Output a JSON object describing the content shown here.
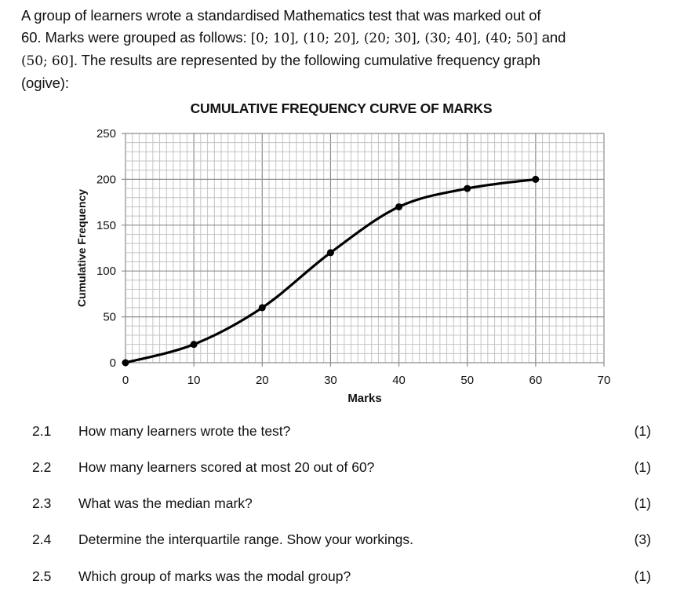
{
  "intro": {
    "line1": "A group of learners wrote a standardised Mathematics test that was marked out of",
    "line2_pre": "60. Marks were grouped as follows: ",
    "line2_math": "[0; 10], (10; 20], (20; 30], (30; 40], (40; 50]",
    "line2_post": " and",
    "line3_math": "(50; 60]",
    "line3_post": ". The results are represented by the following cumulative frequency graph",
    "line4": "(ogive):"
  },
  "chart_data": {
    "type": "line",
    "title": "CUMULATIVE FREQUENCY CURVE OF MARKS",
    "xlabel": "Marks",
    "ylabel": "Cumulative Frequency",
    "x": [
      0,
      10,
      20,
      30,
      40,
      50,
      60
    ],
    "series": [
      {
        "name": "Cumulative Frequency",
        "values": [
          0,
          20,
          60,
          120,
          170,
          190,
          200
        ]
      }
    ],
    "xlim": [
      0,
      70
    ],
    "ylim": [
      0,
      250
    ],
    "xticks": [
      "0",
      "10",
      "20",
      "30",
      "40",
      "50",
      "60",
      "70"
    ],
    "yticks": [
      "0",
      "50",
      "100",
      "150",
      "200",
      "250"
    ],
    "grid": true,
    "minor_grid": {
      "x_step": 1,
      "y_step": 10
    },
    "legend": null
  },
  "questions": [
    {
      "number": "2.1",
      "text": "How many learners wrote the test?",
      "marks": "(1)"
    },
    {
      "number": "2.2",
      "text": "How many learners scored at most 20 out of 60?",
      "marks": "(1)"
    },
    {
      "number": "2.3",
      "text": "What was the median mark?",
      "marks": "(1)"
    },
    {
      "number": "2.4",
      "text": "Determine the interquartile range. Show your workings.",
      "marks": "(3)"
    },
    {
      "number": "2.5",
      "text": "Which group of marks was the modal group?",
      "marks": "(1)"
    }
  ]
}
